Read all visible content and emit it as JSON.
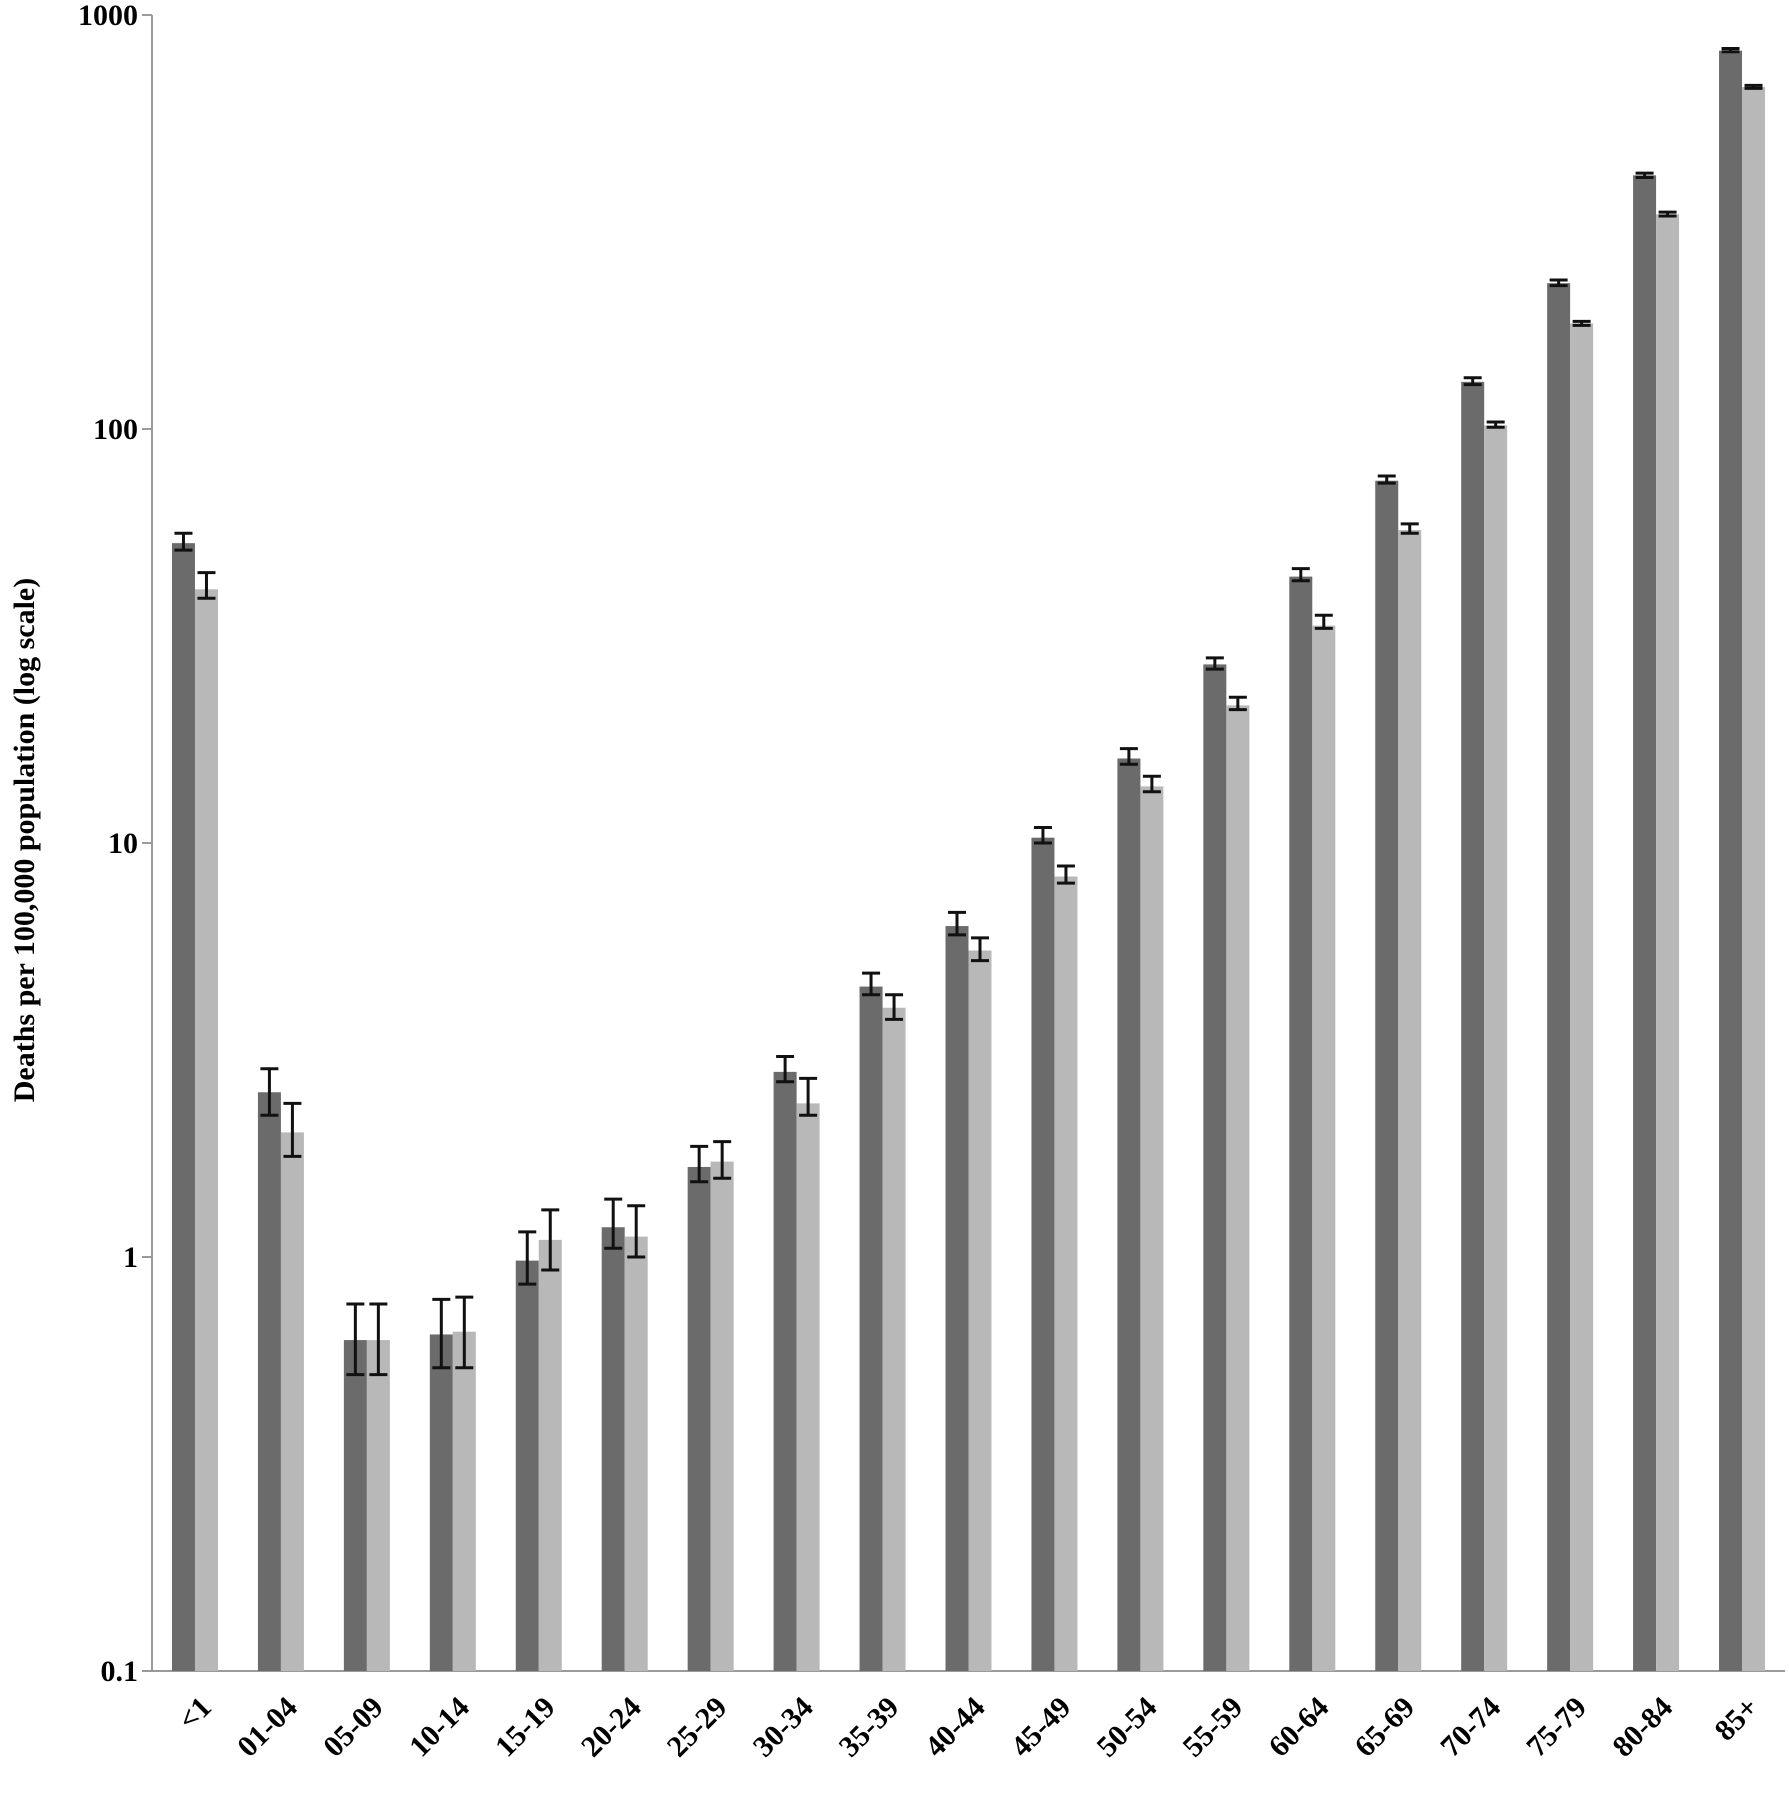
{
  "chart_data": {
    "type": "bar",
    "ylabel": "Deaths per 100,000 population (log scale)",
    "yscale": "log",
    "ylim": [
      0.1,
      1000
    ],
    "yticks": [
      "0.1",
      "1",
      "10",
      "100",
      "1000"
    ],
    "legend": "none",
    "grid": false,
    "categories": [
      "<1",
      "01-04",
      "05-09",
      "10-14",
      "15-19",
      "20-24",
      "25-29",
      "30-34",
      "35-39",
      "40-44",
      "45-49",
      "50-54",
      "55-59",
      "60-64",
      "65-69",
      "70-74",
      "75-79",
      "80-84",
      "85+"
    ],
    "series": [
      {
        "color": "#6b6b6b",
        "values": [
          53,
          2.5,
          0.63,
          0.65,
          0.98,
          1.18,
          1.65,
          2.8,
          4.5,
          6.3,
          10.3,
          16,
          27,
          44,
          75,
          130,
          225,
          410,
          820
        ],
        "error_low": [
          51,
          2.2,
          0.52,
          0.54,
          0.86,
          1.05,
          1.52,
          2.65,
          4.3,
          6.0,
          10.0,
          15.5,
          26.3,
          43,
          74,
          128,
          222,
          405,
          815
        ],
        "error_high": [
          56,
          2.85,
          0.77,
          0.79,
          1.15,
          1.38,
          1.85,
          3.05,
          4.85,
          6.8,
          10.9,
          16.9,
          28,
          46,
          77,
          133,
          229,
          415,
          830
        ]
      },
      {
        "color": "#b8b8b8",
        "values": [
          41,
          2.0,
          0.63,
          0.66,
          1.1,
          1.12,
          1.7,
          2.35,
          4.0,
          5.5,
          8.3,
          13.7,
          21.5,
          33.5,
          57,
          102,
          180,
          330,
          670
        ],
        "error_low": [
          39,
          1.75,
          0.52,
          0.54,
          0.93,
          1.0,
          1.55,
          2.2,
          3.75,
          5.2,
          8.0,
          13.3,
          21.0,
          33.0,
          56,
          101,
          178,
          327,
          665
        ],
        "error_high": [
          45,
          2.35,
          0.77,
          0.8,
          1.3,
          1.33,
          1.9,
          2.7,
          4.3,
          5.9,
          8.8,
          14.5,
          22.5,
          35.5,
          59,
          104,
          182,
          334,
          676
        ]
      }
    ]
  }
}
